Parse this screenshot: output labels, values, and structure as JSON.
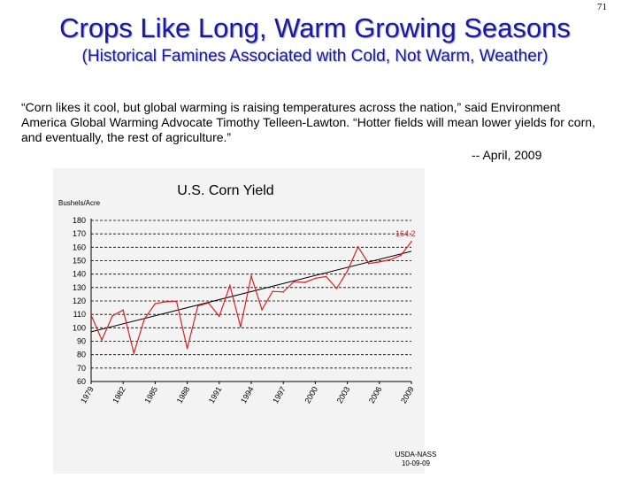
{
  "slide": {
    "page_number": "71",
    "title": "Crops Like Long, Warm Growing Seasons",
    "subtitle": "(Historical Famines Associated with Cold, Not Warm, Weather)",
    "quote": "“Corn likes it cool, but global warming is raising temperatures across the nation,” said Environment America Global Warming Advocate Timothy Telleen-Lawton. “Hotter fields will mean lower yields for corn, and eventually, the rest of agriculture.”",
    "attribution": "-- April, 2009"
  },
  "chart_data": {
    "type": "line",
    "title": "U.S. Corn Yield",
    "ylabel": "Bushels/Acre",
    "ylim": [
      60,
      180
    ],
    "yticks": [
      60,
      70,
      80,
      90,
      100,
      110,
      120,
      130,
      140,
      150,
      160,
      170,
      180
    ],
    "xlim": [
      1979,
      2009
    ],
    "xtick_labels": [
      "1979",
      "1982",
      "1985",
      "1988",
      "1991",
      "1994",
      "1997",
      "2000",
      "2003",
      "2006",
      "2009"
    ],
    "grid": "horizontal dashed",
    "colors": {
      "series": "#e02020",
      "trend": "#000000",
      "grid": "#000000"
    },
    "series": [
      {
        "name": "",
        "x": [
          1979,
          1980,
          1981,
          1982,
          1983,
          1984,
          1985,
          1986,
          1987,
          1988,
          1989,
          1990,
          1991,
          1992,
          1993,
          1994,
          1995,
          1996,
          1997,
          1998,
          1999,
          2000,
          2001,
          2002,
          2003,
          2004,
          2005,
          2006,
          2007,
          2008,
          2009
        ],
        "values": [
          109.5,
          91,
          108.9,
          113.2,
          81.1,
          106.7,
          118,
          119.4,
          119.8,
          84.6,
          116.3,
          118.5,
          108.6,
          131.5,
          100.7,
          138.6,
          113.5,
          127.1,
          126.7,
          134.4,
          133.8,
          136.9,
          138.2,
          129.3,
          142.2,
          160.3,
          147.9,
          149.1,
          150.7,
          153.9,
          164.2
        ]
      }
    ],
    "trendline": {
      "x": [
        1979,
        2009
      ],
      "values": [
        97,
        157
      ]
    },
    "annotation": {
      "text": "164.2",
      "x": 2009,
      "y": 164.2
    },
    "source": "USDA-NASS",
    "source_date": "10-09-09"
  }
}
